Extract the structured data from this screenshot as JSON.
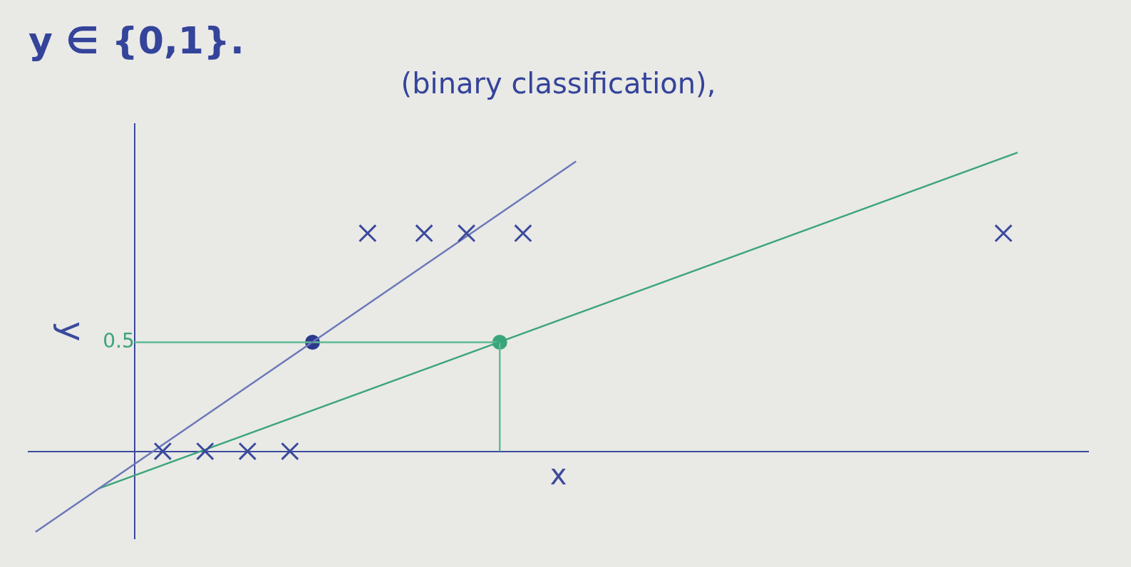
{
  "chart_data": {
    "type": "scatter",
    "title": "y ∈ {0,1}.",
    "subtitle": "(binary classification),",
    "x_label": "x",
    "y_label": "y",
    "xlim": [
      -1.5,
      13.5
    ],
    "ylim": [
      -0.4,
      1.5
    ],
    "yticks": [
      0.5
    ],
    "tick_labels": "y",
    "grid": false,
    "series": [
      {
        "type": "scatter",
        "marker": "cross",
        "color": "#3b4a9c",
        "x": [
          0.4,
          1.0,
          1.6,
          2.2,
          3.3,
          4.1,
          4.7,
          5.5,
          12.3
        ],
        "values": [
          0,
          0,
          0,
          0,
          1,
          1,
          1,
          1,
          1
        ]
      },
      {
        "type": "line",
        "color": "#6a78b8",
        "x": [
          -1.4,
          6.25
        ],
        "values": [
          -0.37,
          1.33
        ]
      },
      {
        "type": "line",
        "color": "#3aa57a",
        "x": [
          -0.5,
          12.5
        ],
        "values": [
          -0.17,
          1.37
        ]
      },
      {
        "type": "line",
        "color": "#5dbb93",
        "x": [
          0,
          2.52,
          5.17
        ],
        "values": [
          0.5,
          0.5,
          0.5
        ]
      },
      {
        "type": "line",
        "color": "#5dbb93",
        "x": [
          5.17,
          5.17
        ],
        "values": [
          0.5,
          0
        ]
      },
      {
        "type": "scatter",
        "marker": "circle",
        "colors": [
          "#2b3a8c",
          "#3aa57a"
        ],
        "x": [
          2.52,
          5.17
        ],
        "values": [
          0.5,
          0.5
        ]
      }
    ]
  }
}
